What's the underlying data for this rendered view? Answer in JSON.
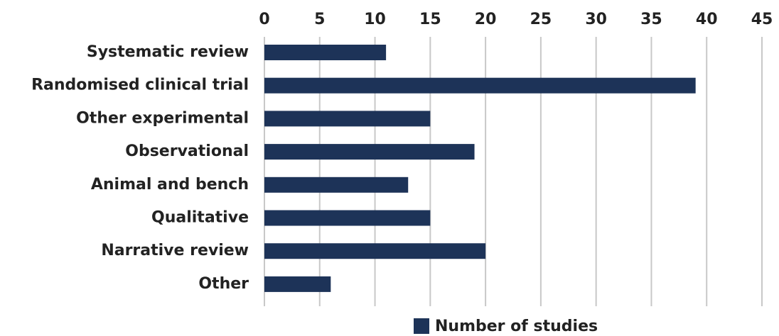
{
  "chart_data": {
    "type": "bar",
    "orientation": "horizontal",
    "categories": [
      "Systematic review",
      "Randomised clinical trial",
      "Other experimental",
      "Observational",
      "Animal and bench",
      "Qualitative",
      "Narrative review",
      "Other"
    ],
    "series": [
      {
        "name": "Number of studies",
        "color": "#1d3358",
        "values": [
          11,
          39,
          15,
          19,
          13,
          15,
          20,
          6
        ]
      }
    ],
    "xlim": [
      0,
      45
    ],
    "xticks": [
      0,
      5,
      10,
      15,
      20,
      25,
      30,
      35,
      40,
      45
    ],
    "grid": true,
    "legend": "bottom"
  }
}
